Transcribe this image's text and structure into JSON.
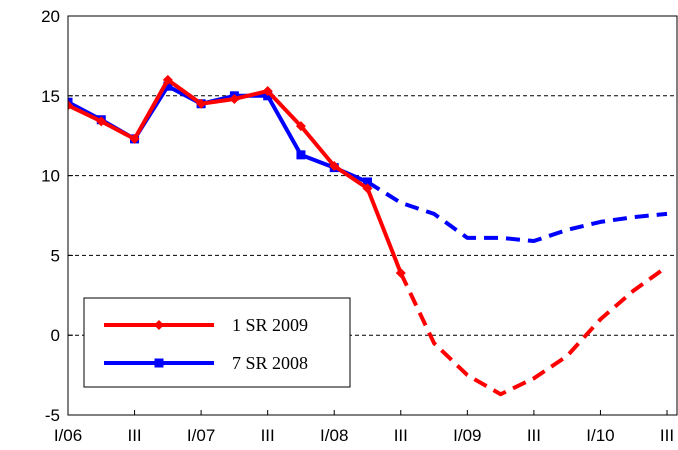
{
  "chart_data": {
    "type": "line",
    "categories": [
      "I/06",
      null,
      "III",
      null,
      "I/07",
      null,
      "III",
      null,
      "I/08",
      null,
      "III",
      null,
      "I/09",
      null,
      "III",
      null,
      "I/10",
      null,
      "III"
    ],
    "series": [
      {
        "name": "1 SR 2009",
        "color": "#ff0000",
        "marker": "diamond",
        "dashed_from": 10,
        "values": [
          14.4,
          13.4,
          12.3,
          16.0,
          14.5,
          14.8,
          15.3,
          13.1,
          10.6,
          9.2,
          3.9,
          -0.5,
          -2.5,
          -3.7,
          -2.7,
          -1.3,
          1.0,
          2.8,
          4.3
        ]
      },
      {
        "name": "7 SR 2008",
        "color": "#0000ff",
        "marker": "square",
        "dashed_from": 9,
        "values": [
          14.6,
          13.5,
          12.3,
          15.6,
          14.5,
          15.0,
          15.0,
          11.3,
          10.5,
          9.6,
          8.3,
          7.6,
          6.1,
          6.1,
          5.9,
          6.6,
          7.1,
          7.4,
          7.6
        ]
      }
    ],
    "ylim": [
      -5,
      20
    ],
    "yticks": [
      -5,
      0,
      5,
      10,
      15,
      20
    ],
    "grid": true,
    "legend": "lower left"
  }
}
